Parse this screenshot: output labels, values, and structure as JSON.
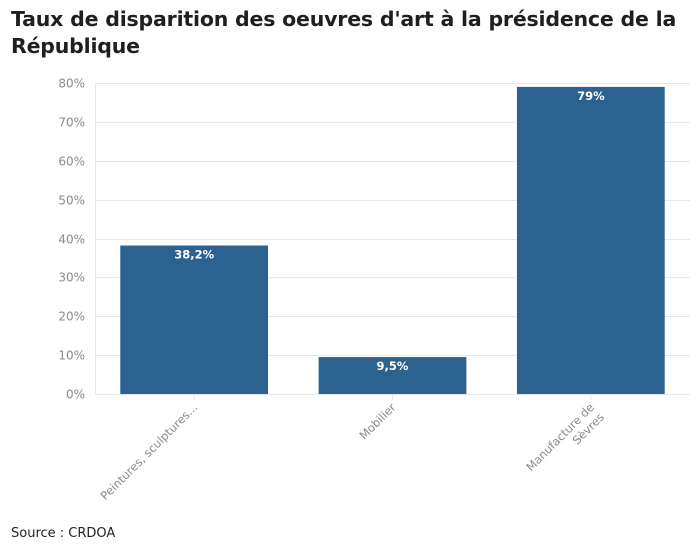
{
  "header": {
    "title": "Taux de disparition des oeuvres d'art à la présidence de la République"
  },
  "footer": {
    "source": "Source : CRDOA"
  },
  "colors": {
    "bar": "#2c6290",
    "grid": "#e6e6e6",
    "axis_text": "#8a8a8a",
    "title_text": "#1f1f1f",
    "data_label": "#ffffff"
  },
  "chart_data": {
    "type": "bar",
    "title": "Taux de disparition des oeuvres d'art à la présidence de la République",
    "xlabel": "",
    "ylabel": "",
    "categories": [
      [
        "Peintures, sculptures..."
      ],
      [
        "Mobilier"
      ],
      [
        "Manufacture de",
        "Sèvres"
      ]
    ],
    "values": [
      38.2,
      9.5,
      79
    ],
    "data_labels": [
      "38,2%",
      "9,5%",
      "79%"
    ],
    "ylim": [
      0,
      80
    ],
    "yticks": [
      0,
      10,
      20,
      30,
      40,
      50,
      60,
      70,
      80
    ],
    "ytick_labels": [
      "0%",
      "10%",
      "20%",
      "30%",
      "40%",
      "50%",
      "60%",
      "70%",
      "80%"
    ],
    "grid": true,
    "legend": "none",
    "source": "CRDOA"
  }
}
